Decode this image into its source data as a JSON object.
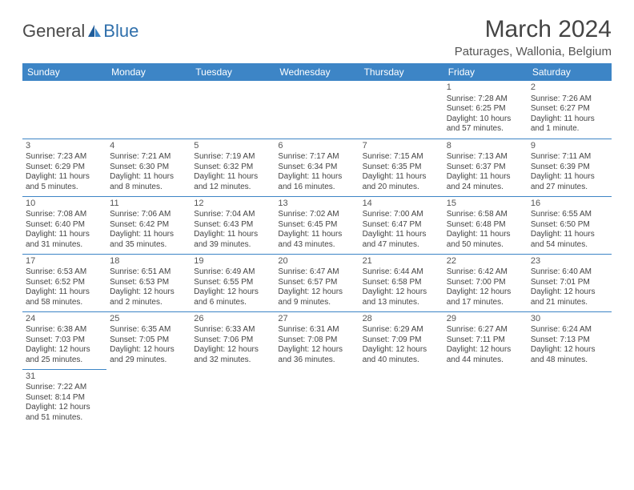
{
  "logo": {
    "text1": "General",
    "text2": "Blue"
  },
  "title": "March 2024",
  "location": "Paturages, Wallonia, Belgium",
  "weekdays": [
    "Sunday",
    "Monday",
    "Tuesday",
    "Wednesday",
    "Thursday",
    "Friday",
    "Saturday"
  ],
  "colors": {
    "header_bg": "#3d85c6",
    "border": "#3d85c6"
  },
  "days": [
    {
      "n": "1",
      "sr": "Sunrise: 7:28 AM",
      "ss": "Sunset: 6:25 PM",
      "dl": "Daylight: 10 hours and 57 minutes."
    },
    {
      "n": "2",
      "sr": "Sunrise: 7:26 AM",
      "ss": "Sunset: 6:27 PM",
      "dl": "Daylight: 11 hours and 1 minute."
    },
    {
      "n": "3",
      "sr": "Sunrise: 7:23 AM",
      "ss": "Sunset: 6:29 PM",
      "dl": "Daylight: 11 hours and 5 minutes."
    },
    {
      "n": "4",
      "sr": "Sunrise: 7:21 AM",
      "ss": "Sunset: 6:30 PM",
      "dl": "Daylight: 11 hours and 8 minutes."
    },
    {
      "n": "5",
      "sr": "Sunrise: 7:19 AM",
      "ss": "Sunset: 6:32 PM",
      "dl": "Daylight: 11 hours and 12 minutes."
    },
    {
      "n": "6",
      "sr": "Sunrise: 7:17 AM",
      "ss": "Sunset: 6:34 PM",
      "dl": "Daylight: 11 hours and 16 minutes."
    },
    {
      "n": "7",
      "sr": "Sunrise: 7:15 AM",
      "ss": "Sunset: 6:35 PM",
      "dl": "Daylight: 11 hours and 20 minutes."
    },
    {
      "n": "8",
      "sr": "Sunrise: 7:13 AM",
      "ss": "Sunset: 6:37 PM",
      "dl": "Daylight: 11 hours and 24 minutes."
    },
    {
      "n": "9",
      "sr": "Sunrise: 7:11 AM",
      "ss": "Sunset: 6:39 PM",
      "dl": "Daylight: 11 hours and 27 minutes."
    },
    {
      "n": "10",
      "sr": "Sunrise: 7:08 AM",
      "ss": "Sunset: 6:40 PM",
      "dl": "Daylight: 11 hours and 31 minutes."
    },
    {
      "n": "11",
      "sr": "Sunrise: 7:06 AM",
      "ss": "Sunset: 6:42 PM",
      "dl": "Daylight: 11 hours and 35 minutes."
    },
    {
      "n": "12",
      "sr": "Sunrise: 7:04 AM",
      "ss": "Sunset: 6:43 PM",
      "dl": "Daylight: 11 hours and 39 minutes."
    },
    {
      "n": "13",
      "sr": "Sunrise: 7:02 AM",
      "ss": "Sunset: 6:45 PM",
      "dl": "Daylight: 11 hours and 43 minutes."
    },
    {
      "n": "14",
      "sr": "Sunrise: 7:00 AM",
      "ss": "Sunset: 6:47 PM",
      "dl": "Daylight: 11 hours and 47 minutes."
    },
    {
      "n": "15",
      "sr": "Sunrise: 6:58 AM",
      "ss": "Sunset: 6:48 PM",
      "dl": "Daylight: 11 hours and 50 minutes."
    },
    {
      "n": "16",
      "sr": "Sunrise: 6:55 AM",
      "ss": "Sunset: 6:50 PM",
      "dl": "Daylight: 11 hours and 54 minutes."
    },
    {
      "n": "17",
      "sr": "Sunrise: 6:53 AM",
      "ss": "Sunset: 6:52 PM",
      "dl": "Daylight: 11 hours and 58 minutes."
    },
    {
      "n": "18",
      "sr": "Sunrise: 6:51 AM",
      "ss": "Sunset: 6:53 PM",
      "dl": "Daylight: 12 hours and 2 minutes."
    },
    {
      "n": "19",
      "sr": "Sunrise: 6:49 AM",
      "ss": "Sunset: 6:55 PM",
      "dl": "Daylight: 12 hours and 6 minutes."
    },
    {
      "n": "20",
      "sr": "Sunrise: 6:47 AM",
      "ss": "Sunset: 6:57 PM",
      "dl": "Daylight: 12 hours and 9 minutes."
    },
    {
      "n": "21",
      "sr": "Sunrise: 6:44 AM",
      "ss": "Sunset: 6:58 PM",
      "dl": "Daylight: 12 hours and 13 minutes."
    },
    {
      "n": "22",
      "sr": "Sunrise: 6:42 AM",
      "ss": "Sunset: 7:00 PM",
      "dl": "Daylight: 12 hours and 17 minutes."
    },
    {
      "n": "23",
      "sr": "Sunrise: 6:40 AM",
      "ss": "Sunset: 7:01 PM",
      "dl": "Daylight: 12 hours and 21 minutes."
    },
    {
      "n": "24",
      "sr": "Sunrise: 6:38 AM",
      "ss": "Sunset: 7:03 PM",
      "dl": "Daylight: 12 hours and 25 minutes."
    },
    {
      "n": "25",
      "sr": "Sunrise: 6:35 AM",
      "ss": "Sunset: 7:05 PM",
      "dl": "Daylight: 12 hours and 29 minutes."
    },
    {
      "n": "26",
      "sr": "Sunrise: 6:33 AM",
      "ss": "Sunset: 7:06 PM",
      "dl": "Daylight: 12 hours and 32 minutes."
    },
    {
      "n": "27",
      "sr": "Sunrise: 6:31 AM",
      "ss": "Sunset: 7:08 PM",
      "dl": "Daylight: 12 hours and 36 minutes."
    },
    {
      "n": "28",
      "sr": "Sunrise: 6:29 AM",
      "ss": "Sunset: 7:09 PM",
      "dl": "Daylight: 12 hours and 40 minutes."
    },
    {
      "n": "29",
      "sr": "Sunrise: 6:27 AM",
      "ss": "Sunset: 7:11 PM",
      "dl": "Daylight: 12 hours and 44 minutes."
    },
    {
      "n": "30",
      "sr": "Sunrise: 6:24 AM",
      "ss": "Sunset: 7:13 PM",
      "dl": "Daylight: 12 hours and 48 minutes."
    },
    {
      "n": "31",
      "sr": "Sunrise: 7:22 AM",
      "ss": "Sunset: 8:14 PM",
      "dl": "Daylight: 12 hours and 51 minutes."
    }
  ]
}
